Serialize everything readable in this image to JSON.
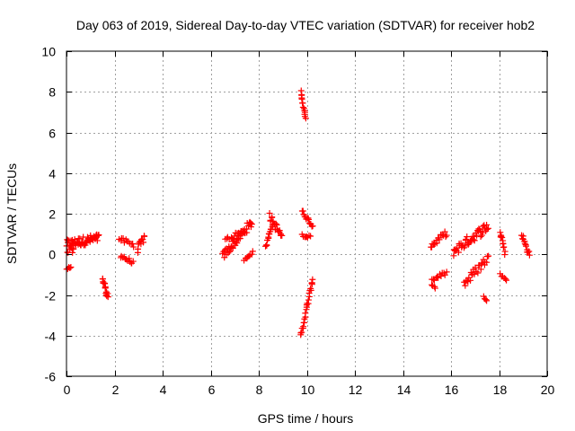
{
  "chart_data": {
    "type": "scatter",
    "title": "Day 063 of 2019, Sidereal Day-to-day VTEC variation (SDTVAR) for receiver hob2",
    "xlabel": "GPS time / hours",
    "ylabel": "SDTVAR / TECUs",
    "xlim": [
      0,
      20
    ],
    "ylim": [
      -6,
      10
    ],
    "x_ticks": [
      0,
      2,
      4,
      6,
      8,
      10,
      12,
      14,
      16,
      18,
      20
    ],
    "y_ticks": [
      -6,
      -4,
      -2,
      0,
      2,
      4,
      6,
      8,
      10
    ],
    "x_tick_labels": [
      "0",
      "2",
      "4",
      "6",
      "8",
      "10",
      "12",
      "14",
      "16",
      "18",
      "20"
    ],
    "y_tick_labels": [
      "-6",
      "-4",
      "-2",
      "0",
      "2",
      "4",
      "6",
      "8",
      "10"
    ],
    "grid": true,
    "legend": "none",
    "marker": "+",
    "point_color": "#ff0000",
    "axis_color": "#000000",
    "grid_color": "#a0a0a0",
    "segments": [
      {
        "x0": 0.0,
        "y0": 0.5,
        "x1": 1.35,
        "y1": 0.8,
        "n": 55,
        "spread": 0.22
      },
      {
        "x0": 0.0,
        "y0": 0.1,
        "x1": 0.3,
        "y1": 0.25,
        "n": 8,
        "spread": 0.15
      },
      {
        "x0": 0.0,
        "y0": -0.75,
        "x1": 0.18,
        "y1": -0.6,
        "n": 5,
        "spread": 0.05
      },
      {
        "x0": 1.5,
        "y0": -1.2,
        "x1": 1.72,
        "y1": -2.05,
        "n": 16,
        "spread": 0.15
      },
      {
        "x0": 2.2,
        "y0": 0.75,
        "x1": 2.8,
        "y1": 0.45,
        "n": 12,
        "spread": 0.12
      },
      {
        "x0": 2.25,
        "y0": -0.05,
        "x1": 2.78,
        "y1": -0.45,
        "n": 12,
        "spread": 0.12
      },
      {
        "x0": 2.95,
        "y0": 0.25,
        "x1": 3.25,
        "y1": 0.85,
        "n": 12,
        "spread": 0.18
      },
      {
        "x0": 6.5,
        "y0": -0.1,
        "x1": 7.7,
        "y1": 1.55,
        "n": 45,
        "spread": 0.22
      },
      {
        "x0": 6.6,
        "y0": 0.75,
        "x1": 7.4,
        "y1": 1.1,
        "n": 14,
        "spread": 0.12
      },
      {
        "x0": 7.4,
        "y0": -0.25,
        "x1": 7.75,
        "y1": 0.1,
        "n": 8,
        "spread": 0.06
      },
      {
        "x0": 8.3,
        "y0": 0.35,
        "x1": 8.55,
        "y1": 1.45,
        "n": 12,
        "spread": 0.12
      },
      {
        "x0": 8.45,
        "y0": 1.85,
        "x1": 8.95,
        "y1": 0.9,
        "n": 20,
        "spread": 0.2
      },
      {
        "x0": 9.75,
        "y0": 8.0,
        "x1": 9.95,
        "y1": 6.7,
        "n": 14,
        "spread": 0.06
      },
      {
        "x0": 9.8,
        "y0": 2.1,
        "x1": 10.25,
        "y1": 1.4,
        "n": 14,
        "spread": 0.1
      },
      {
        "x0": 9.8,
        "y0": 0.95,
        "x1": 10.15,
        "y1": 0.85,
        "n": 8,
        "spread": 0.06
      },
      {
        "x0": 9.75,
        "y0": -4.05,
        "x1": 10.25,
        "y1": -1.2,
        "n": 26,
        "spread": 0.12
      },
      {
        "x0": 15.15,
        "y0": 0.4,
        "x1": 15.8,
        "y1": 1.05,
        "n": 18,
        "spread": 0.15
      },
      {
        "x0": 15.2,
        "y0": -1.3,
        "x1": 15.8,
        "y1": -0.9,
        "n": 12,
        "spread": 0.12
      },
      {
        "x0": 15.2,
        "y0": -1.5,
        "x1": 15.35,
        "y1": -1.7,
        "n": 4,
        "spread": 0.05
      },
      {
        "x0": 16.1,
        "y0": 0.15,
        "x1": 17.55,
        "y1": 1.4,
        "n": 45,
        "spread": 0.25
      },
      {
        "x0": 16.55,
        "y0": -1.45,
        "x1": 17.55,
        "y1": -0.15,
        "n": 26,
        "spread": 0.22
      },
      {
        "x0": 17.35,
        "y0": -2.1,
        "x1": 17.5,
        "y1": -2.25,
        "n": 4,
        "spread": 0.04
      },
      {
        "x0": 18.05,
        "y0": 1.15,
        "x1": 18.25,
        "y1": 0.1,
        "n": 12,
        "spread": 0.12
      },
      {
        "x0": 18.05,
        "y0": -1.0,
        "x1": 18.3,
        "y1": -1.25,
        "n": 6,
        "spread": 0.06
      },
      {
        "x0": 18.95,
        "y0": 0.95,
        "x1": 19.25,
        "y1": 0.0,
        "n": 14,
        "spread": 0.12
      }
    ]
  }
}
